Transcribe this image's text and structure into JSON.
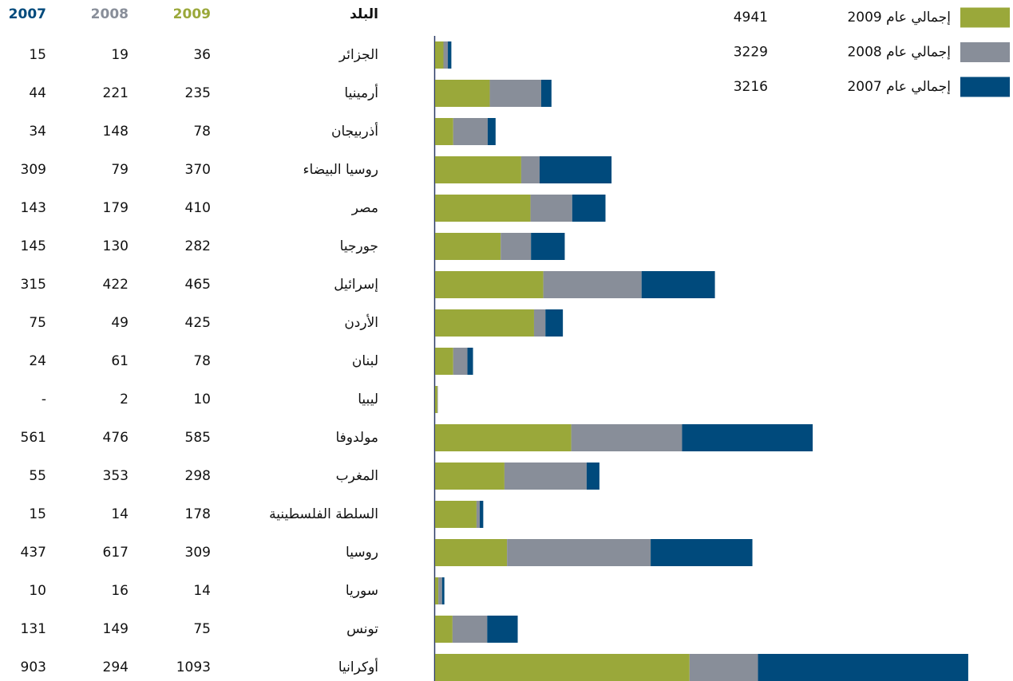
{
  "chart_data": {
    "type": "stacked-bar-horizontal",
    "table_headers": [
      "2007",
      "2008",
      "2009",
      "البلد"
    ],
    "categories": [
      "الجزائر",
      "أرمينيا",
      "أذربيجان",
      "روسيا البيضاء",
      "مصر",
      "جورجيا",
      "إسرائيل",
      "الأردن",
      "لبنان",
      "ليبيا",
      "مولدوفا",
      "المغرب",
      "السلطة الفلسطينية",
      "روسيا",
      "سوريا",
      "تونس",
      "أوكرانيا"
    ],
    "series": [
      {
        "name": "إجمالي عام 2009",
        "color": "#9aa83a",
        "total": 4941,
        "values": [
          36,
          235,
          78,
          370,
          410,
          282,
          465,
          425,
          78,
          10,
          585,
          298,
          178,
          309,
          14,
          75,
          1093
        ]
      },
      {
        "name": "إجمالي عام 2008",
        "color": "#888e99",
        "total": 3229,
        "values": [
          19,
          221,
          148,
          79,
          179,
          130,
          422,
          49,
          61,
          2,
          476,
          353,
          14,
          617,
          16,
          149,
          294
        ]
      },
      {
        "name": "إجمالي عام 2007",
        "color": "#004a7c",
        "total": 3216,
        "values": [
          15,
          44,
          34,
          309,
          143,
          145,
          315,
          75,
          24,
          null,
          561,
          55,
          15,
          437,
          10,
          131,
          903
        ],
        "value_labels": [
          "15",
          "44",
          "34",
          "309",
          "143",
          "145",
          "315",
          "75",
          "24",
          "-",
          "561",
          "55",
          "15",
          "437",
          "10",
          "131",
          "903"
        ]
      }
    ],
    "xlim": [
      0,
      2400
    ]
  }
}
